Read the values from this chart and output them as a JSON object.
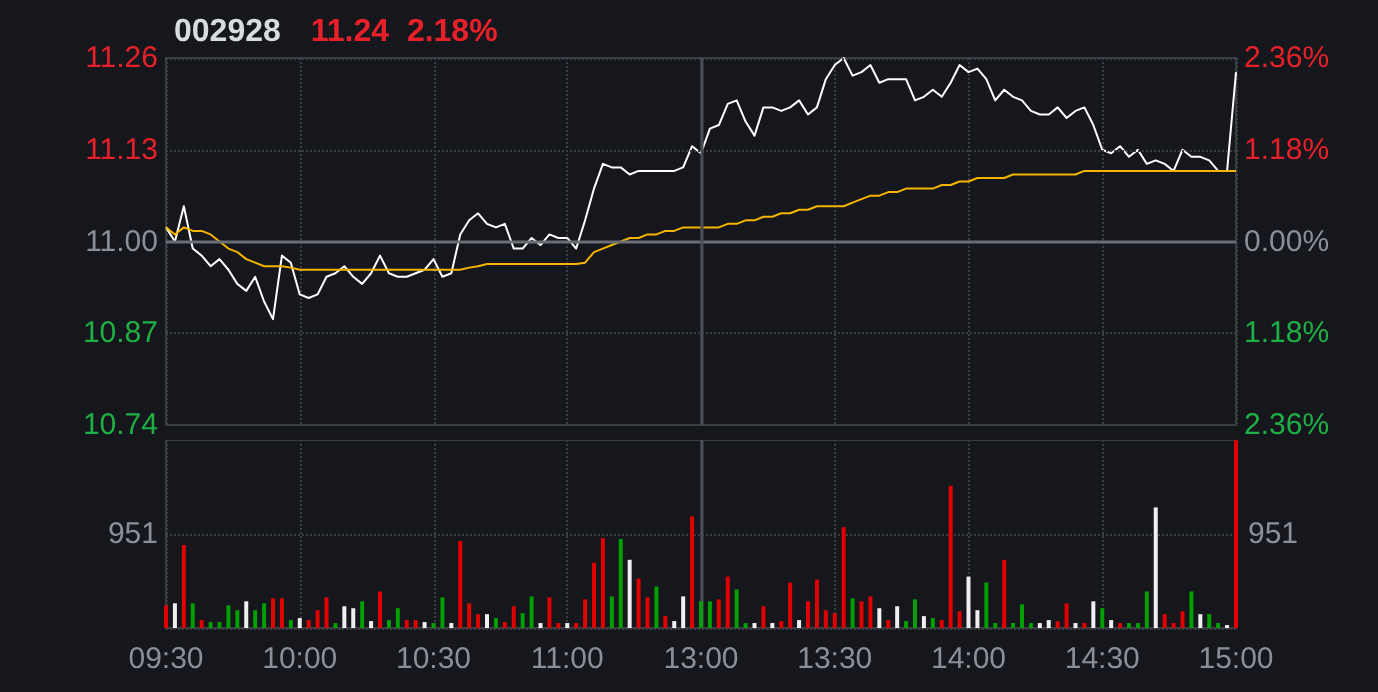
{
  "chart_data": [
    {
      "type": "line",
      "title": "002928",
      "subtitle": "11.24  2.18%",
      "categories": [
        "09:30",
        null,
        null,
        null,
        null,
        null,
        null,
        null,
        null,
        null,
        null,
        null,
        null,
        null,
        null,
        "10:00",
        null,
        null,
        null,
        null,
        null,
        null,
        null,
        null,
        null,
        null,
        null,
        null,
        null,
        null,
        "10:30",
        null,
        null,
        null,
        null,
        null,
        null,
        null,
        null,
        null,
        null,
        null,
        null,
        null,
        null,
        "11:00",
        null,
        null,
        null,
        null,
        null,
        null,
        null,
        null,
        null,
        null,
        null,
        null,
        null,
        null,
        "13:00",
        null,
        null,
        null,
        null,
        null,
        null,
        null,
        null,
        null,
        null,
        null,
        null,
        null,
        null,
        "13:30",
        null,
        null,
        null,
        null,
        null,
        null,
        null,
        null,
        null,
        null,
        null,
        null,
        null,
        null,
        "14:00",
        null,
        null,
        null,
        null,
        null,
        null,
        null,
        null,
        null,
        null,
        null,
        null,
        null,
        null,
        "14:30",
        null,
        null,
        null,
        null,
        null,
        null,
        null,
        null,
        null,
        null,
        null,
        null,
        null,
        null,
        "15:00"
      ],
      "series": [
        {
          "color": "#ffffff",
          "values": [
            11.02,
            11.0,
            11.05,
            10.99,
            10.98,
            10.965,
            10.975,
            10.96,
            10.94,
            10.93,
            10.95,
            10.915,
            10.89,
            10.98,
            10.97,
            10.925,
            10.92,
            10.925,
            10.95,
            10.955,
            10.965,
            10.95,
            10.94,
            10.955,
            10.98,
            10.955,
            10.95,
            10.95,
            10.955,
            10.96,
            10.975,
            10.95,
            10.955,
            11.01,
            11.03,
            11.04,
            11.025,
            11.02,
            11.025,
            10.99,
            10.99,
            11.005,
            10.995,
            11.01,
            11.005,
            11.005,
            10.99,
            11.03,
            11.075,
            11.11,
            11.105,
            11.105,
            11.095,
            11.1,
            11.1,
            11.1,
            11.1,
            11.1,
            11.105,
            11.135,
            11.125,
            11.16,
            11.165,
            11.195,
            11.2,
            11.17,
            11.15,
            11.19,
            11.19,
            11.185,
            11.19,
            11.2,
            11.18,
            11.19,
            11.23,
            11.25,
            11.26,
            11.235,
            11.24,
            11.25,
            11.225,
            11.23,
            11.23,
            11.23,
            11.2,
            11.205,
            11.215,
            11.205,
            11.225,
            11.25,
            11.24,
            11.245,
            11.23,
            11.2,
            11.215,
            11.205,
            11.2,
            11.185,
            11.18,
            11.18,
            11.19,
            11.175,
            11.185,
            11.19,
            11.165,
            11.13,
            11.125,
            11.135,
            11.12,
            11.13,
            11.11,
            11.115,
            11.11,
            11.1,
            11.13,
            11.12,
            11.12,
            11.115,
            11.1,
            11.1,
            11.24
          ]
        },
        {
          "color": "#f5b400",
          "values": [
            11.02,
            11.01,
            11.02,
            11.015,
            11.015,
            11.01,
            11.0,
            10.99,
            10.985,
            10.975,
            10.97,
            10.965,
            10.965,
            10.965,
            10.963,
            10.96,
            10.96,
            10.96,
            10.96,
            10.96,
            10.96,
            10.96,
            10.96,
            10.96,
            10.96,
            10.96,
            10.96,
            10.96,
            10.96,
            10.96,
            10.96,
            10.96,
            10.96,
            10.96,
            10.963,
            10.965,
            10.968,
            10.968,
            10.968,
            10.968,
            10.968,
            10.968,
            10.968,
            10.968,
            10.968,
            10.968,
            10.968,
            10.97,
            10.985,
            10.99,
            10.995,
            11.0,
            11.005,
            11.005,
            11.01,
            11.01,
            11.015,
            11.015,
            11.02,
            11.02,
            11.02,
            11.02,
            11.02,
            11.025,
            11.025,
            11.03,
            11.03,
            11.035,
            11.035,
            11.04,
            11.04,
            11.045,
            11.045,
            11.05,
            11.05,
            11.05,
            11.05,
            11.055,
            11.06,
            11.065,
            11.065,
            11.07,
            11.07,
            11.075,
            11.075,
            11.075,
            11.075,
            11.08,
            11.08,
            11.085,
            11.085,
            11.09,
            11.09,
            11.09,
            11.09,
            11.095,
            11.095,
            11.095,
            11.095,
            11.095,
            11.095,
            11.095,
            11.095,
            11.1,
            11.1,
            11.1,
            11.1,
            11.1,
            11.1,
            11.1,
            11.1,
            11.1,
            11.1,
            11.1,
            11.1,
            11.1,
            11.1,
            11.1,
            11.1,
            11.1,
            11.1
          ]
        }
      ],
      "ylim": [
        10.74,
        11.26
      ],
      "yticks": [
        10.74,
        10.87,
        {
          "value": 11,
          "label": "11.00"
        },
        11.13,
        11.26
      ],
      "y2lim": [
        -2.36,
        2.36
      ],
      "y2ticks": [
        {
          "value": -2.36,
          "label": "2.36%"
        },
        {
          "value": -1.18,
          "label": "1.18%"
        },
        {
          "value": 0,
          "label": "0.00%"
        },
        {
          "value": 1.18,
          "label": "1.18%"
        },
        {
          "value": 2.36,
          "label": "2.36%"
        }
      ],
      "ref_lines": [
        {
          "axis": "x",
          "value": "13:00",
          "color": "#4a4d55",
          "line_style": "solid"
        }
      ],
      "grid": true,
      "tick_labels": "y",
      "marker": "none",
      "line_style": "solid"
    },
    {
      "type": "bar",
      "categories": [
        "09:30",
        null,
        null,
        null,
        null,
        null,
        null,
        null,
        null,
        null,
        null,
        null,
        null,
        null,
        null,
        "10:00",
        null,
        null,
        null,
        null,
        null,
        null,
        null,
        null,
        null,
        null,
        null,
        null,
        null,
        null,
        "10:30",
        null,
        null,
        null,
        null,
        null,
        null,
        null,
        null,
        null,
        null,
        null,
        null,
        null,
        null,
        "11:00",
        null,
        null,
        null,
        null,
        null,
        null,
        null,
        null,
        null,
        null,
        null,
        null,
        null,
        null,
        "13:00",
        null,
        null,
        null,
        null,
        null,
        null,
        null,
        null,
        null,
        null,
        null,
        null,
        null,
        null,
        "13:30",
        null,
        null,
        null,
        null,
        null,
        null,
        null,
        null,
        null,
        null,
        null,
        null,
        null,
        null,
        "14:00",
        null,
        null,
        null,
        null,
        null,
        null,
        null,
        null,
        null,
        null,
        null,
        null,
        null,
        null,
        "14:30",
        null,
        null,
        null,
        null,
        null,
        null,
        null,
        null,
        null,
        null,
        null,
        null,
        null,
        null,
        "15:00"
      ],
      "values": [
        230,
        250,
        840,
        250,
        80,
        60,
        60,
        230,
        180,
        270,
        180,
        250,
        300,
        300,
        80,
        100,
        80,
        180,
        310,
        50,
        220,
        200,
        270,
        70,
        370,
        80,
        200,
        80,
        80,
        60,
        50,
        310,
        50,
        880,
        250,
        140,
        140,
        100,
        60,
        220,
        150,
        320,
        50,
        310,
        50,
        50,
        50,
        290,
        660,
        910,
        320,
        900,
        690,
        500,
        310,
        420,
        120,
        70,
        320,
        1130,
        270,
        270,
        290,
        520,
        390,
        50,
        50,
        220,
        50,
        70,
        460,
        80,
        270,
        490,
        180,
        150,
        1020,
        300,
        270,
        320,
        200,
        80,
        220,
        70,
        290,
        120,
        100,
        80,
        1440,
        170,
        520,
        180,
        460,
        50,
        690,
        50,
        240,
        50,
        50,
        80,
        70,
        250,
        50,
        50,
        270,
        200,
        80,
        50,
        50,
        50,
        370,
        1220,
        140,
        50,
        170,
        370,
        140,
        140,
        50,
        30,
        1900
      ],
      "colors": [
        "#e00000",
        "#f0f0f0",
        "#e00000",
        "#00a000",
        "#e00000",
        "#00a000",
        "#00a000",
        "#00a000",
        "#00a000",
        "#f0f0f0",
        "#00a000",
        "#00a000",
        "#e00000",
        "#e00000",
        "#00a000",
        "#f0f0f0",
        "#e00000",
        "#e00000",
        "#e00000",
        "#00a000",
        "#f0f0f0",
        "#f0f0f0",
        "#00a000",
        "#f0f0f0",
        "#e00000",
        "#00a000",
        "#00a000",
        "#e00000",
        "#e00000",
        "#f0f0f0",
        "#00a000",
        "#00a000",
        "#f0f0f0",
        "#e00000",
        "#e00000",
        "#e00000",
        "#f0f0f0",
        "#00a000",
        "#e00000",
        "#e00000",
        "#00a000",
        "#00a000",
        "#f0f0f0",
        "#e00000",
        "#e00000",
        "#f0f0f0",
        "#e00000",
        "#e00000",
        "#e00000",
        "#e00000",
        "#00a000",
        "#00a000",
        "#f0f0f0",
        "#e00000",
        "#e00000",
        "#00a000",
        "#e00000",
        "#f0f0f0",
        "#f0f0f0",
        "#e00000",
        "#00a000",
        "#00a000",
        "#e00000",
        "#e00000",
        "#00a000",
        "#00a000",
        "#f0f0f0",
        "#e00000",
        "#f0f0f0",
        "#e00000",
        "#e00000",
        "#f0f0f0",
        "#e00000",
        "#e00000",
        "#e00000",
        "#e00000",
        "#e00000",
        "#00a000",
        "#e00000",
        "#e00000",
        "#f0f0f0",
        "#e00000",
        "#f0f0f0",
        "#00a000",
        "#00a000",
        "#f0f0f0",
        "#00a000",
        "#e00000",
        "#e00000",
        "#e00000",
        "#f0f0f0",
        "#f0f0f0",
        "#00a000",
        "#00a000",
        "#e00000",
        "#00a000",
        "#00a000",
        "#00a000",
        "#f0f0f0",
        "#f0f0f0",
        "#e00000",
        "#e00000",
        "#f0f0f0",
        "#e00000",
        "#f0f0f0",
        "#00a000",
        "#f0f0f0",
        "#e00000",
        "#00a000",
        "#00a000",
        "#00a000",
        "#f0f0f0",
        "#e00000",
        "#e00000",
        "#e00000",
        "#00a000",
        "#f0f0f0",
        "#00a000",
        "#00a000",
        "#f0f0f0",
        "#e00000"
      ],
      "ylim": [
        0,
        1902
      ],
      "yticks": [
        {
          "value": 0,
          "label": null
        },
        951
      ],
      "annotations": [
        {
          "text": "951",
          "x": "15:00",
          "y": 951
        }
      ],
      "ref_lines": [
        {
          "axis": "x",
          "value": "13:00",
          "color": "#4a4d55",
          "line_style": "solid"
        }
      ],
      "grid": true
    }
  ]
}
